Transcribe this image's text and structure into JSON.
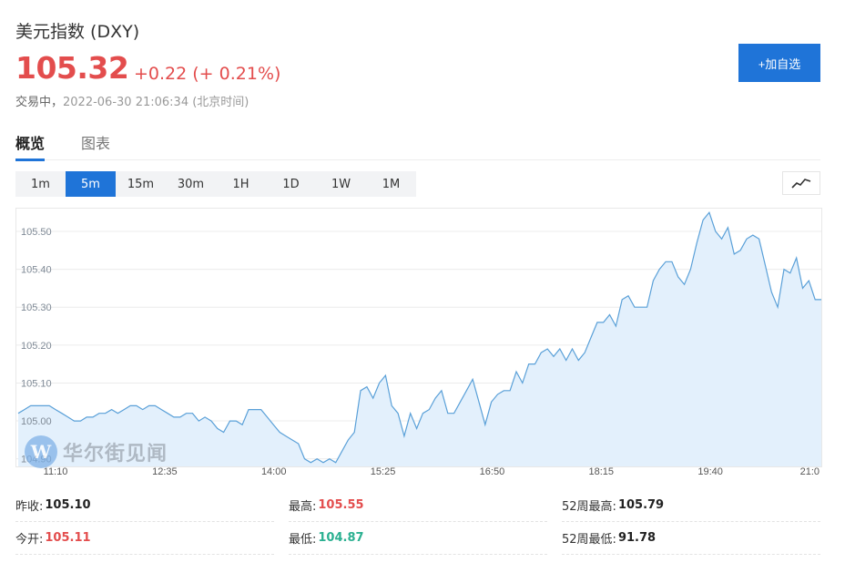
{
  "header": {
    "title": "美元指数 (DXY)",
    "price": "105.32",
    "change": "+0.22 (+ 0.21%)",
    "status_label": "交易中，",
    "status_time": "2022-06-30 21:06:34 (北京时间)",
    "add_button": "+加自选"
  },
  "tabs": [
    {
      "label": "概览",
      "active": true
    },
    {
      "label": "图表",
      "active": false
    }
  ],
  "periods": [
    {
      "label": "1m",
      "active": false
    },
    {
      "label": "5m",
      "active": true
    },
    {
      "label": "15m",
      "active": false
    },
    {
      "label": "30m",
      "active": false
    },
    {
      "label": "1H",
      "active": false
    },
    {
      "label": "1D",
      "active": false
    },
    {
      "label": "1W",
      "active": false
    },
    {
      "label": "1M",
      "active": false
    }
  ],
  "watermark": {
    "text": "华尔街见闻",
    "logo_letter": "W"
  },
  "stats": {
    "prev_close": {
      "label": "昨收:",
      "value": "105.10"
    },
    "high": {
      "label": "最高:",
      "value": "105.55"
    },
    "high_52w": {
      "label": "52周最高:",
      "value": "105.79"
    },
    "open": {
      "label": "今开:",
      "value": "105.11"
    },
    "low": {
      "label": "最低:",
      "value": "104.87"
    },
    "low_52w": {
      "label": "52周最低:",
      "value": "91.78"
    }
  },
  "colors": {
    "accent": "#1f74d8",
    "up": "#e34d4d",
    "down": "#2bb091",
    "line": "#5aa0d8",
    "area": "#e3f0fc"
  },
  "chart_data": {
    "type": "area",
    "title": "",
    "xlabel": "",
    "ylabel": "",
    "ylim": [
      104.88,
      105.56
    ],
    "yticks": [
      104.9,
      105.0,
      105.1,
      105.2,
      105.3,
      105.4,
      105.5
    ],
    "ytick_labels": [
      "104.90",
      "105.00",
      "105.10",
      "105.20",
      "105.30",
      "105.40",
      "105.50"
    ],
    "xtick_labels": [
      "11:10",
      "12:35",
      "14:00",
      "15:25",
      "16:50",
      "18:15",
      "19:40",
      "21:0"
    ],
    "grid": true,
    "legend": "none",
    "series": [
      {
        "values": [
          105.02,
          105.03,
          105.04,
          105.04,
          105.04,
          105.04,
          105.03,
          105.02,
          105.01,
          105.0,
          105.0,
          105.01,
          105.01,
          105.02,
          105.02,
          105.03,
          105.02,
          105.03,
          105.04,
          105.04,
          105.03,
          105.04,
          105.04,
          105.03,
          105.02,
          105.01,
          105.01,
          105.02,
          105.02,
          105.0,
          105.01,
          105.0,
          104.98,
          104.97,
          105.0,
          105.0,
          104.99,
          105.03,
          105.03,
          105.03,
          105.01,
          104.99,
          104.97,
          104.96,
          104.95,
          104.94,
          104.9,
          104.89,
          104.9,
          104.89,
          104.9,
          104.89,
          104.92,
          104.95,
          104.97,
          105.08,
          105.09,
          105.06,
          105.1,
          105.12,
          105.04,
          105.02,
          104.96,
          105.02,
          104.98,
          105.02,
          105.03,
          105.06,
          105.08,
          105.02,
          105.02,
          105.05,
          105.08,
          105.11,
          105.05,
          104.99,
          105.05,
          105.07,
          105.08,
          105.08,
          105.13,
          105.1,
          105.15,
          105.15,
          105.18,
          105.19,
          105.17,
          105.19,
          105.16,
          105.19,
          105.16,
          105.18,
          105.22,
          105.26,
          105.26,
          105.28,
          105.25,
          105.32,
          105.33,
          105.3,
          105.3,
          105.3,
          105.37,
          105.4,
          105.42,
          105.42,
          105.38,
          105.36,
          105.4,
          105.47,
          105.53,
          105.55,
          105.5,
          105.48,
          105.51,
          105.44,
          105.45,
          105.48,
          105.49,
          105.48,
          105.41,
          105.34,
          105.3,
          105.4,
          105.39,
          105.43,
          105.35,
          105.37,
          105.32,
          105.32
        ]
      }
    ]
  }
}
